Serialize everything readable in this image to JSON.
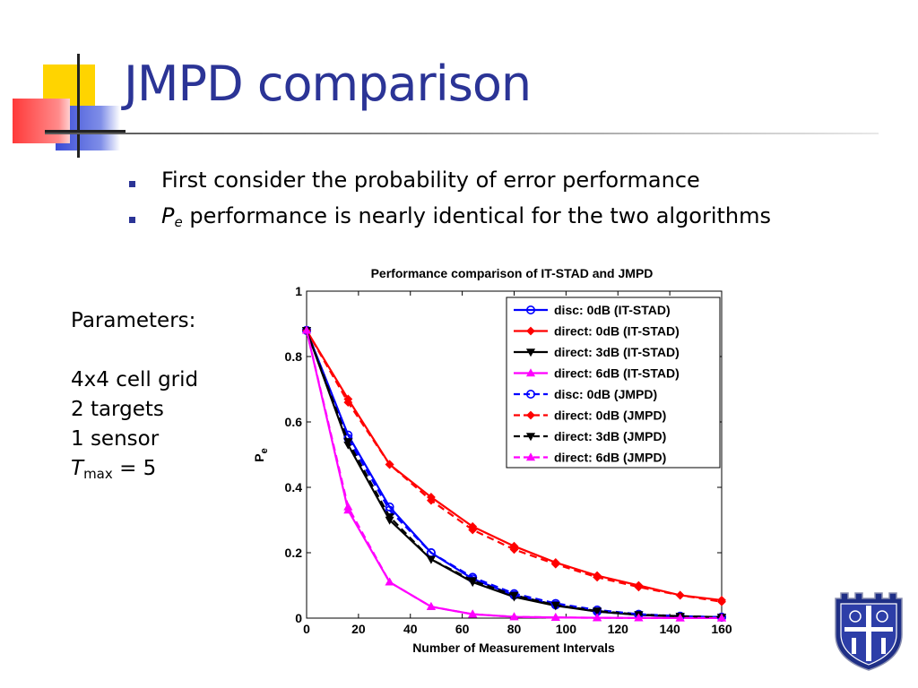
{
  "slide": {
    "title": "JMPD comparison",
    "bullets": [
      "First consider the probability of error performance",
      "performance is nearly identical for the two algorithms"
    ],
    "bullet2_symbol": "P",
    "bullet2_subscript": "e",
    "parameters_heading": "Parameters:",
    "parameters": [
      "4x4 cell grid",
      "2 targets",
      "1 sensor"
    ],
    "tmax_symbol": "T",
    "tmax_subscript": "max",
    "tmax_value": "= 5",
    "crest_icon": "university-shield-crest-icon",
    "accent_color": "#2b3496"
  },
  "chart_data": {
    "type": "line",
    "title": "Performance comparison of IT-STAD and JMPD",
    "xlabel": "Number of Measurement Intervals",
    "ylabel": "P",
    "ylabel_subscript": "e",
    "xlim": [
      0,
      160
    ],
    "ylim": [
      0,
      1
    ],
    "x_ticks": [
      0,
      20,
      40,
      60,
      80,
      100,
      120,
      140,
      160
    ],
    "y_ticks": [
      0,
      0.2,
      0.4,
      0.6,
      0.8,
      1
    ],
    "y_tick_labels": [
      "0",
      "0.2",
      "0.4",
      "0.6",
      "0.8",
      "1"
    ],
    "legend_placement": "top-right",
    "grid": false,
    "x": [
      0,
      16,
      32,
      48,
      64,
      80,
      96,
      112,
      128,
      144,
      160
    ],
    "series": [
      {
        "name": "disc: 0dB (IT-STAD)",
        "color": "#0000ff",
        "dash": "solid",
        "marker": "circle",
        "values": [
          0.88,
          0.56,
          0.34,
          0.2,
          0.12,
          0.07,
          0.04,
          0.02,
          0.01,
          0.005,
          0.003
        ]
      },
      {
        "name": "direct: 0dB (IT-STAD)",
        "color": "#ff0000",
        "dash": "solid",
        "marker": "diamond",
        "values": [
          0.88,
          0.67,
          0.47,
          0.37,
          0.28,
          0.22,
          0.17,
          0.13,
          0.1,
          0.07,
          0.055
        ]
      },
      {
        "name": "direct: 3dB (IT-STAD)",
        "color": "#000000",
        "dash": "solid",
        "marker": "triangle-down",
        "values": [
          0.88,
          0.53,
          0.3,
          0.18,
          0.11,
          0.065,
          0.038,
          0.02,
          0.01,
          0.005,
          0.003
        ]
      },
      {
        "name": "direct: 6dB (IT-STAD)",
        "color": "#ff00ff",
        "dash": "solid",
        "marker": "triangle-up",
        "values": [
          0.88,
          0.33,
          0.11,
          0.035,
          0.012,
          0.004,
          0.002,
          0.001,
          0.0005,
          0.0003,
          0.0002
        ]
      },
      {
        "name": "disc: 0dB (JMPD)",
        "color": "#0000ff",
        "dash": "dashed",
        "marker": "circle",
        "values": [
          0.88,
          0.55,
          0.33,
          0.2,
          0.125,
          0.075,
          0.045,
          0.025,
          0.012,
          0.006,
          0.003
        ]
      },
      {
        "name": "direct: 0dB (JMPD)",
        "color": "#ff0000",
        "dash": "dashed",
        "marker": "diamond",
        "values": [
          0.88,
          0.66,
          0.47,
          0.36,
          0.27,
          0.21,
          0.165,
          0.125,
          0.095,
          0.07,
          0.05
        ]
      },
      {
        "name": "direct: 3dB (JMPD)",
        "color": "#000000",
        "dash": "dashed",
        "marker": "triangle-down",
        "values": [
          0.88,
          0.54,
          0.31,
          0.18,
          0.115,
          0.07,
          0.04,
          0.022,
          0.011,
          0.006,
          0.003
        ]
      },
      {
        "name": "direct: 6dB (JMPD)",
        "color": "#ff00ff",
        "dash": "dashed",
        "marker": "triangle-up",
        "values": [
          0.88,
          0.34,
          0.11,
          0.035,
          0.012,
          0.004,
          0.002,
          0.001,
          0.0005,
          0.0003,
          0.0002
        ]
      }
    ]
  }
}
